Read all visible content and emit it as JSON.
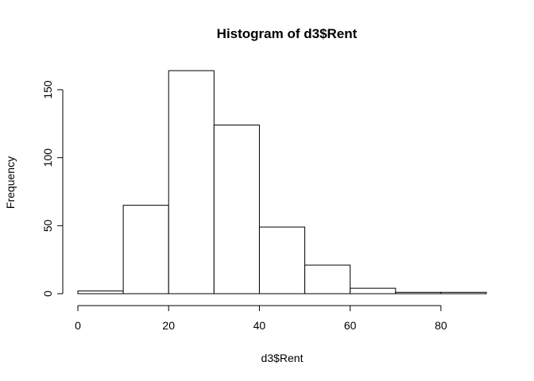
{
  "chart_data": {
    "type": "bar",
    "title": "Histogram of d3$Rent",
    "xlabel": "d3$Rent",
    "ylabel": "Frequency",
    "bins": [
      {
        "x0": 0,
        "x1": 10,
        "count": 2
      },
      {
        "x0": 10,
        "x1": 20,
        "count": 65
      },
      {
        "x0": 20,
        "x1": 30,
        "count": 164
      },
      {
        "x0": 30,
        "x1": 40,
        "count": 124
      },
      {
        "x0": 40,
        "x1": 50,
        "count": 49
      },
      {
        "x0": 50,
        "x1": 60,
        "count": 21
      },
      {
        "x0": 60,
        "x1": 70,
        "count": 4
      },
      {
        "x0": 70,
        "x1": 80,
        "count": 1
      },
      {
        "x0": 80,
        "x1": 90,
        "count": 1
      }
    ],
    "xticks": [
      0,
      20,
      40,
      60,
      80
    ],
    "yticks": [
      0,
      50,
      100,
      150
    ],
    "xlim": [
      0,
      90
    ],
    "ylim": [
      0,
      164
    ],
    "grid": false,
    "bar_fill": "#ffffff",
    "bar_stroke": "#000000"
  }
}
